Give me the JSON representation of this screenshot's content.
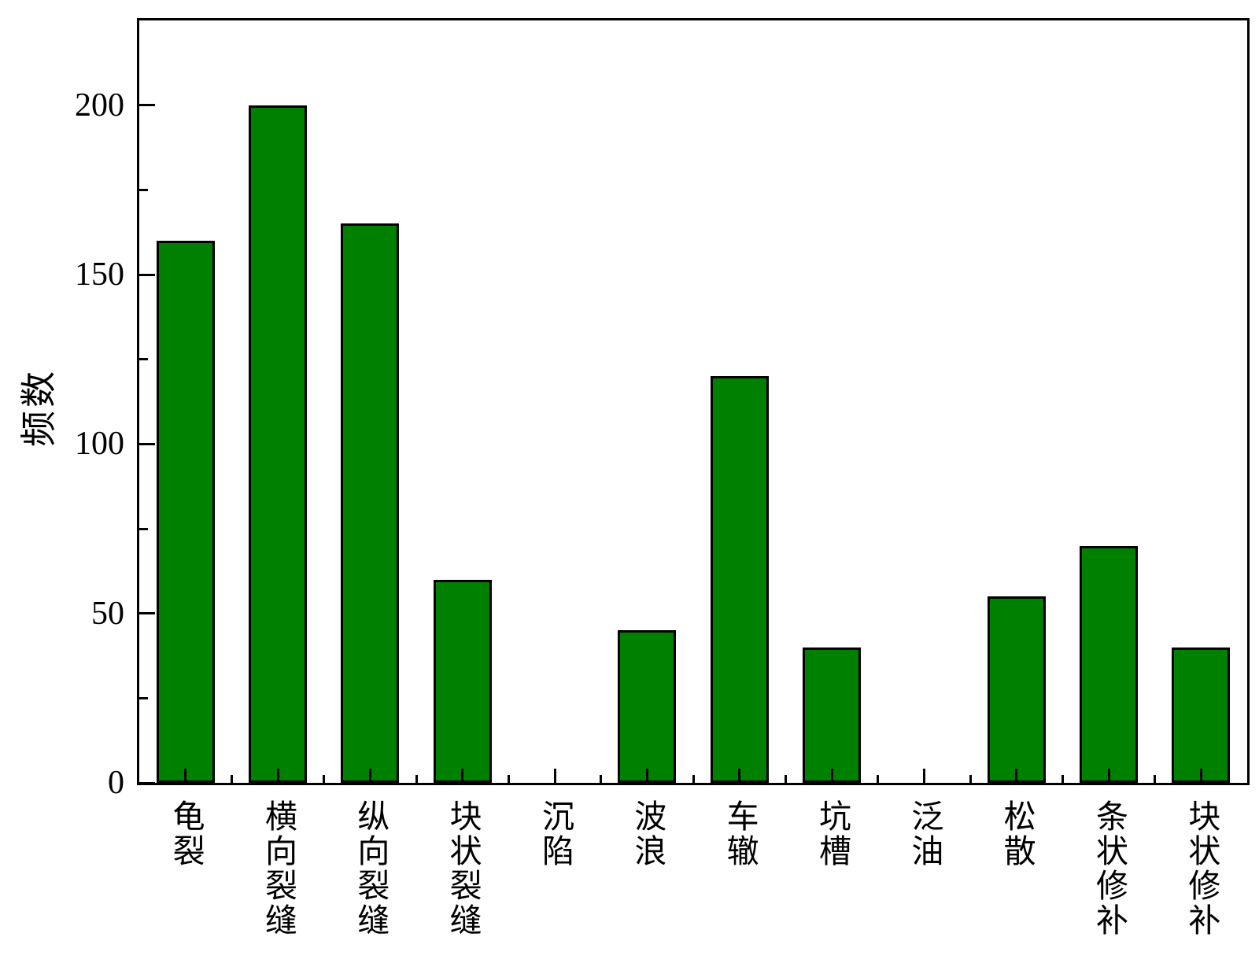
{
  "chart_data": {
    "type": "bar",
    "title": "",
    "xlabel": "",
    "ylabel": "频数",
    "categories": [
      "龟裂",
      "横向裂缝",
      "纵向裂缝",
      "块状裂缝",
      "沉陷",
      "波浪",
      "车辙",
      "坑槽",
      "泛油",
      "松散",
      "条状修补",
      "块状修补"
    ],
    "values": [
      160,
      200,
      165,
      60,
      0,
      45,
      120,
      40,
      0,
      55,
      70,
      40
    ],
    "ylim": [
      0,
      225
    ],
    "ytick_major_values": [
      0,
      50,
      100,
      150,
      200
    ],
    "ytick_major_labels": [
      "0",
      "50",
      "100",
      "150",
      "200"
    ],
    "ytick_minor_values": [
      25,
      75,
      125,
      175
    ],
    "grid": false,
    "legend": null,
    "bar_fill_color": "#008000",
    "bar_edge_color": "#000000",
    "axis_color": "#000000"
  }
}
